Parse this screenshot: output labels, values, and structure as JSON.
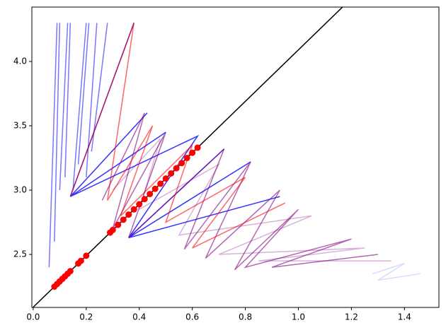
{
  "chart_data": {
    "type": "line",
    "xlim": [
      -0.005,
      1.53
    ],
    "ylim": [
      2.088,
      4.423
    ],
    "xticks": [
      {
        "value": 0,
        "label": "0.0"
      },
      {
        "value": 0.2,
        "label": "0.2"
      },
      {
        "value": 0.4,
        "label": "0.4"
      },
      {
        "value": 0.6,
        "label": "0.6"
      },
      {
        "value": 0.8,
        "label": "0.8"
      },
      {
        "value": 1.0,
        "label": "1.0"
      },
      {
        "value": 1.2,
        "label": "1.2"
      },
      {
        "value": 1.4,
        "label": "1.4"
      }
    ],
    "yticks": [
      2.5,
      {
        "value": 3.0,
        "label": "3.0"
      },
      3.5,
      {
        "value": 4.0,
        "label": "4.0"
      }
    ],
    "series": [
      {
        "color": "#0000ff88",
        "x": [
          0.06,
          0.09,
          null,
          0.08,
          0.1,
          null,
          0.1,
          0.13,
          null,
          0.12,
          0.14,
          null,
          0.15,
          0.2,
          null,
          0.17,
          0.21,
          null,
          0.2,
          0.24,
          null,
          0.22,
          0.28
        ],
        "values": [
          2.4,
          4.3,
          null,
          2.6,
          4.3,
          null,
          3.0,
          4.3,
          null,
          3.1,
          4.3,
          null,
          3.0,
          4.3,
          null,
          3.2,
          4.3,
          null,
          3.1,
          4.3,
          null,
          3.3,
          4.3
        ]
      },
      {
        "color": "#0000ffcc",
        "x": [
          0.38,
          0.14,
          0.43,
          0.14,
          0.5,
          0.14,
          0.62,
          0.36,
          0.72,
          0.36,
          0.82,
          0.36,
          0.93
        ],
        "values": [
          4.3,
          2.95,
          3.6,
          2.95,
          3.45,
          2.95,
          3.42,
          2.63,
          3.32,
          2.63,
          3.22,
          2.63,
          2.95
        ]
      },
      {
        "color": "#80008099",
        "x": [
          0.26,
          0.42,
          0.3,
          0.5,
          0.36,
          0.72,
          0.57,
          0.82,
          0.65,
          0.93,
          0.76,
          1.0,
          0.8,
          1.2,
          0.9,
          1.3
        ],
        "values": [
          2.92,
          3.6,
          2.7,
          3.45,
          2.63,
          3.32,
          2.54,
          3.22,
          2.47,
          3.0,
          2.38,
          2.85,
          2.4,
          2.62,
          2.4,
          2.5
        ]
      },
      {
        "color": "#ff000099",
        "x": [
          0.14,
          0.38,
          0.28,
          0.45,
          0.33,
          0.6,
          0.5,
          0.8,
          0.6,
          0.95
        ],
        "values": [
          2.95,
          4.3,
          2.92,
          3.5,
          2.8,
          3.35,
          2.75,
          3.1,
          2.55,
          2.9
        ]
      },
      {
        "color": "#8000804d",
        "x": [
          0.3,
          0.48,
          0.4,
          0.7,
          0.55,
          1.05,
          0.7,
          1.25,
          0.85,
          1.35
        ],
        "values": [
          3.0,
          3.4,
          2.85,
          3.2,
          2.65,
          2.8,
          2.5,
          2.55,
          2.45,
          2.45
        ]
      },
      {
        "color": "#0000ff26",
        "x": [
          1.28,
          1.4,
          1.3,
          1.46
        ],
        "values": [
          2.35,
          2.43,
          2.3,
          2.35
        ]
      },
      {
        "color": "#000000",
        "x": [
          0.0,
          1.17
        ],
        "values": [
          2.09,
          4.43
        ]
      },
      {
        "color": "#ff0000",
        "linestyle": "none",
        "marker": "o",
        "x": [
          0.08,
          0.09,
          0.1,
          0.11,
          0.12,
          0.13,
          0.14,
          0.17,
          0.18,
          0.2,
          0.29,
          0.3,
          0.32,
          0.34,
          0.36,
          0.38,
          0.4,
          0.42,
          0.44,
          0.46,
          0.48,
          0.5,
          0.52,
          0.54,
          0.56,
          0.58,
          0.6,
          0.62
        ],
        "values": [
          2.25,
          2.27,
          2.29,
          2.31,
          2.33,
          2.35,
          2.37,
          2.43,
          2.45,
          2.49,
          2.67,
          2.69,
          2.73,
          2.77,
          2.81,
          2.85,
          2.89,
          2.93,
          2.97,
          3.01,
          3.05,
          3.09,
          3.13,
          3.17,
          3.21,
          3.25,
          3.29,
          3.33
        ]
      }
    ]
  }
}
